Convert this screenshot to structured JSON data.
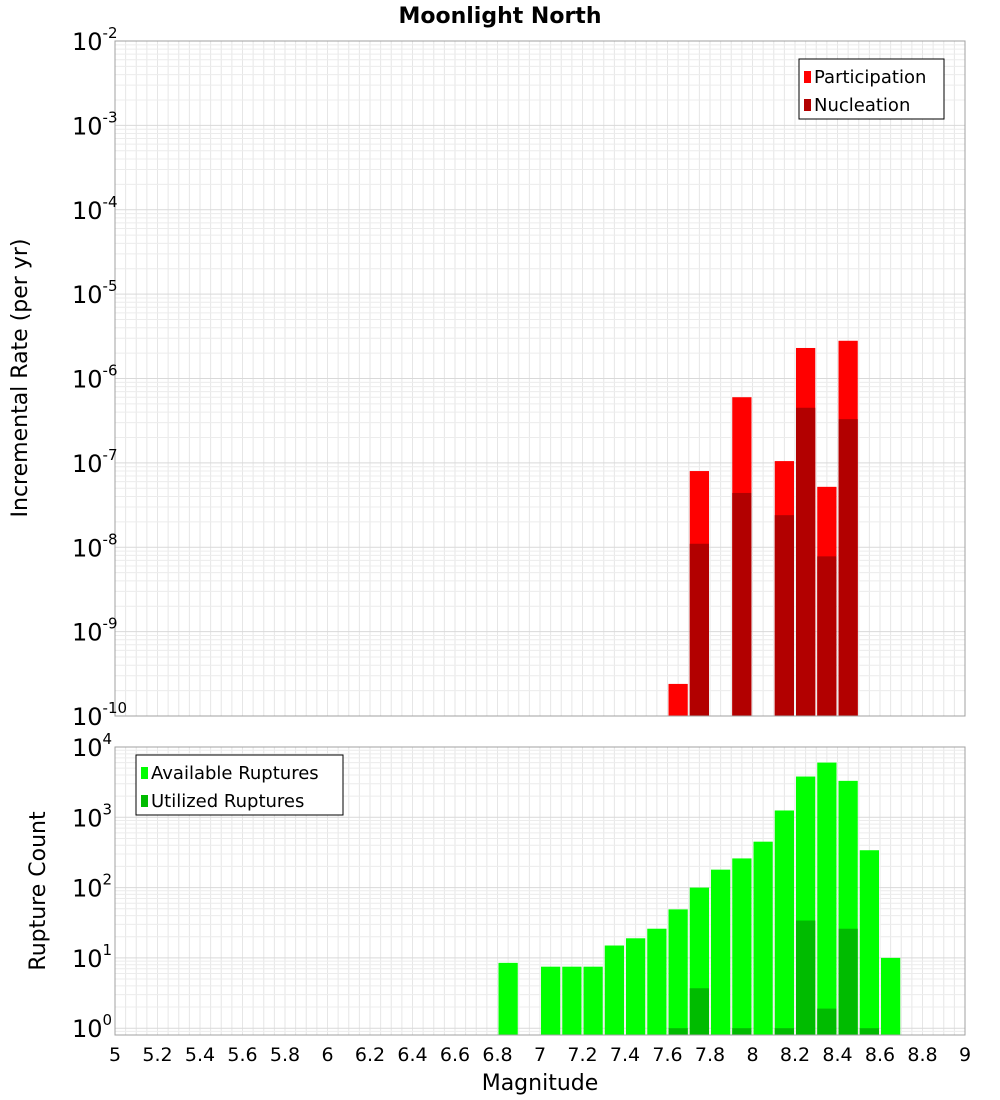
{
  "chart_data": [
    {
      "type": "bar",
      "title": "Moonlight North",
      "xlabel": "",
      "ylabel": "Incremental Rate (per yr)",
      "yscale": "log",
      "ylim": [
        1e-10,
        0.01
      ],
      "xlim": [
        5,
        9
      ],
      "bin_width": 0.1,
      "y_ticks": [
        {
          "base": "10",
          "exp": "-10"
        },
        {
          "base": "10",
          "exp": "-9"
        },
        {
          "base": "10",
          "exp": "-8"
        },
        {
          "base": "10",
          "exp": "-7"
        },
        {
          "base": "10",
          "exp": "-6"
        },
        {
          "base": "10",
          "exp": "-5"
        },
        {
          "base": "10",
          "exp": "-4"
        },
        {
          "base": "10",
          "exp": "-3"
        },
        {
          "base": "10",
          "exp": "-2"
        }
      ],
      "legend_position": "top-right",
      "series": [
        {
          "name": "Participation",
          "color": "#ff0000",
          "x": [
            7.65,
            7.75,
            7.95,
            8.15,
            8.25,
            8.35,
            8.45
          ],
          "values": [
            2.4e-10,
            8e-08,
            6e-07,
            1.05e-07,
            2.3e-06,
            5.2e-08,
            2.8e-06
          ]
        },
        {
          "name": "Nucleation",
          "color": "#b20000",
          "x": [
            7.75,
            7.95,
            8.15,
            8.25,
            8.35,
            8.45
          ],
          "values": [
            1.1e-08,
            4.4e-08,
            2.4e-08,
            4.5e-07,
            7.8e-09,
            3.3e-07
          ]
        }
      ]
    },
    {
      "type": "bar",
      "xlabel": "Magnitude",
      "ylabel": "Rupture Count",
      "yscale": "log",
      "ylim": [
        0.8,
        10000
      ],
      "xlim": [
        5,
        9
      ],
      "bin_width": 0.1,
      "x_ticks": [
        "5",
        "5.2",
        "5.4",
        "5.6",
        "5.8",
        "6",
        "6.2",
        "6.4",
        "6.6",
        "6.8",
        "7",
        "7.2",
        "7.4",
        "7.6",
        "7.8",
        "8",
        "8.2",
        "8.4",
        "8.6",
        "8.8",
        "9"
      ],
      "y_ticks": [
        {
          "base": "10",
          "exp": "0"
        },
        {
          "base": "10",
          "exp": "1"
        },
        {
          "base": "10",
          "exp": "2"
        },
        {
          "base": "10",
          "exp": "3"
        },
        {
          "base": "10",
          "exp": "4"
        }
      ],
      "legend_position": "top-left",
      "series": [
        {
          "name": "Available Ruptures",
          "color": "#00ff00",
          "x": [
            6.85,
            7.05,
            7.15,
            7.25,
            7.35,
            7.45,
            7.55,
            7.65,
            7.75,
            7.85,
            7.95,
            8.05,
            8.15,
            8.25,
            8.35,
            8.45,
            8.55,
            8.65
          ],
          "values": [
            8.5,
            7.5,
            7.5,
            7.5,
            15,
            19,
            26,
            49,
            100,
            180,
            260,
            450,
            1250,
            3800,
            6000,
            3300,
            340,
            10
          ]
        },
        {
          "name": "Utilized Ruptures",
          "color": "#00bb00",
          "x": [
            7.65,
            7.75,
            7.95,
            8.15,
            8.25,
            8.35,
            8.45,
            8.55
          ],
          "values": [
            1,
            3.7,
            1,
            1,
            34,
            1.9,
            26,
            1
          ]
        }
      ]
    }
  ]
}
